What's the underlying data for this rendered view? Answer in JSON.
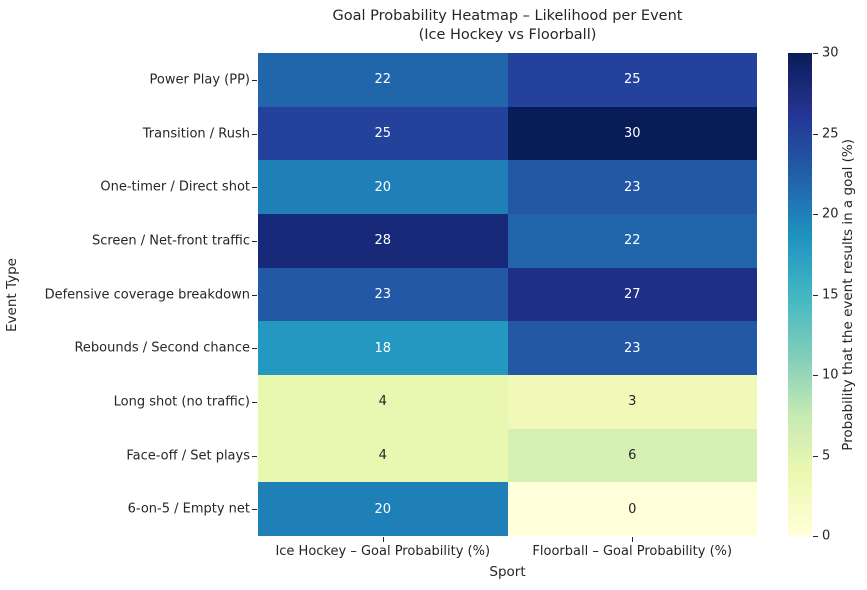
{
  "title": "Goal Probability Heatmap – Likelihood per Event",
  "subtitle": "(Ice Hockey vs Floorball)",
  "xlabel": "Sport",
  "ylabel": "Event Type",
  "colorbar_label": "Probability that the event results in a goal (%)",
  "chart_data": {
    "type": "heatmap",
    "rows": [
      "Power Play (PP)",
      "Transition / Rush",
      "One-timer / Direct shot",
      "Screen / Net-front traffic",
      "Defensive coverage breakdown",
      "Rebounds / Second chance",
      "Long shot (no traffic)",
      "Face-off / Set plays",
      "6-on-5 / Empty net"
    ],
    "columns": [
      "Ice Hockey – Goal Probability (%)",
      "Floorball – Goal Probability (%)"
    ],
    "values": [
      [
        22,
        25
      ],
      [
        25,
        30
      ],
      [
        20,
        23
      ],
      [
        28,
        22
      ],
      [
        23,
        27
      ],
      [
        18,
        23
      ],
      [
        4,
        3
      ],
      [
        4,
        6
      ],
      [
        20,
        0
      ]
    ],
    "vmin": 0,
    "vmax": 30,
    "colorbar_ticks": [
      0,
      5,
      10,
      15,
      20,
      25,
      30
    ],
    "colormap": "YlGnBu",
    "colormap_stops": [
      [
        0.0,
        "#ffffd9"
      ],
      [
        0.125,
        "#edf8b1"
      ],
      [
        0.25,
        "#c7e9b4"
      ],
      [
        0.375,
        "#7fcdbb"
      ],
      [
        0.5,
        "#41b6c4"
      ],
      [
        0.625,
        "#1d91c0"
      ],
      [
        0.75,
        "#225ea8"
      ],
      [
        0.875,
        "#253494"
      ],
      [
        1.0,
        "#081d58"
      ]
    ],
    "annot_color_light_cells": "#262626",
    "annot_color_dark_cells": "#ffffff",
    "legend_position": "right",
    "grid": false
  }
}
